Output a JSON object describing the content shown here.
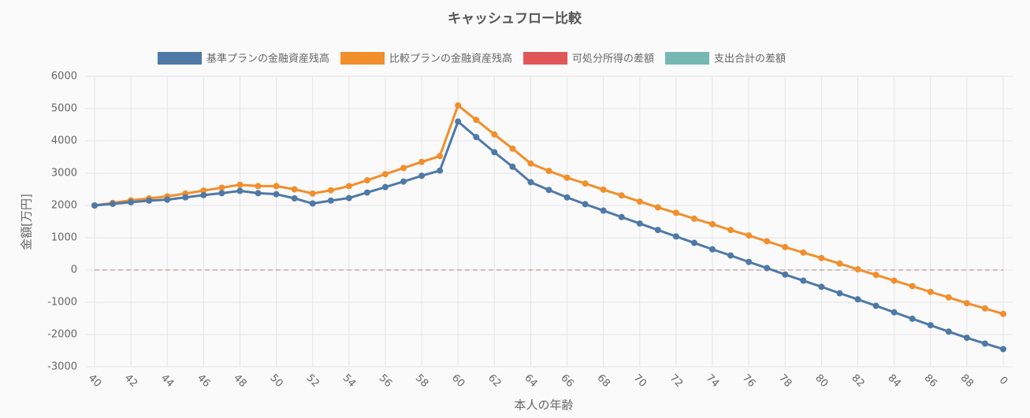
{
  "chart_data": {
    "type": "line",
    "title": "キャッシュフロー比較",
    "x_label": "本人の年齢",
    "y_label": "金額[万円]",
    "categories": [
      "40",
      null,
      "42",
      null,
      "44",
      null,
      "46",
      null,
      "48",
      null,
      "50",
      null,
      "52",
      null,
      "54",
      null,
      "56",
      null,
      "58",
      null,
      "60",
      null,
      "62",
      null,
      "64",
      null,
      "66",
      null,
      "68",
      null,
      "70",
      null,
      "72",
      null,
      "74",
      null,
      "76",
      null,
      "78",
      null,
      "80",
      null,
      "82",
      null,
      "84",
      null,
      "86",
      null,
      "88",
      null,
      "0"
    ],
    "series": [
      {
        "name": "基準プランの金融資産残高",
        "color": "#4e79a7",
        "values": [
          2000,
          2050,
          2100,
          2150,
          2180,
          2250,
          2320,
          2380,
          2450,
          2380,
          2350,
          2220,
          2060,
          2150,
          2230,
          2400,
          2570,
          2740,
          2920,
          3080,
          4600,
          4120,
          3650,
          3200,
          2720,
          2480,
          2250,
          2040,
          1840,
          1640,
          1440,
          1240,
          1040,
          840,
          640,
          450,
          250,
          60,
          -140,
          -330,
          -520,
          -720,
          -910,
          -1110,
          -1310,
          -1510,
          -1710,
          -1910,
          -2100,
          -2280,
          -2450
        ]
      },
      {
        "name": "比較プランの金融資産残高",
        "color": "#f28e2b",
        "values": [
          2000,
          2080,
          2160,
          2220,
          2280,
          2370,
          2460,
          2550,
          2640,
          2600,
          2600,
          2500,
          2370,
          2470,
          2600,
          2780,
          2970,
          3160,
          3350,
          3530,
          5100,
          4650,
          4200,
          3760,
          3300,
          3070,
          2860,
          2680,
          2490,
          2310,
          2120,
          1940,
          1770,
          1590,
          1420,
          1240,
          1070,
          890,
          710,
          540,
          370,
          200,
          20,
          -150,
          -330,
          -500,
          -680,
          -850,
          -1030,
          -1190,
          -1360
        ]
      },
      {
        "name": "可処分所得の差額",
        "color": "#e15759",
        "values": [
          0,
          0,
          0,
          0,
          0,
          0,
          0,
          0,
          0,
          0,
          0,
          0,
          0,
          0,
          0,
          0,
          0,
          0,
          0,
          0,
          0,
          0,
          0,
          0,
          0,
          0,
          0,
          0,
          0,
          0,
          0,
          0,
          0,
          0,
          0,
          0,
          0,
          0,
          0,
          0,
          0,
          0,
          0,
          0,
          0,
          0,
          0,
          0,
          0,
          0,
          0
        ]
      },
      {
        "name": "支出合計の差額",
        "color": "#76b7b2",
        "values": [
          0,
          0,
          0,
          0,
          0,
          0,
          0,
          0,
          0,
          0,
          0,
          0,
          0,
          0,
          0,
          0,
          0,
          0,
          0,
          0,
          0,
          0,
          0,
          0,
          0,
          0,
          0,
          0,
          0,
          0,
          0,
          0,
          0,
          0,
          0,
          0,
          0,
          0,
          0,
          0,
          0,
          0,
          0,
          0,
          0,
          0,
          0,
          0,
          0,
          0,
          0
        ]
      }
    ],
    "ylim": [
      -3000,
      6000
    ],
    "yticks": [
      -3000,
      -2000,
      -1000,
      0,
      1000,
      2000,
      3000,
      4000,
      5000,
      6000
    ],
    "grid": true
  }
}
